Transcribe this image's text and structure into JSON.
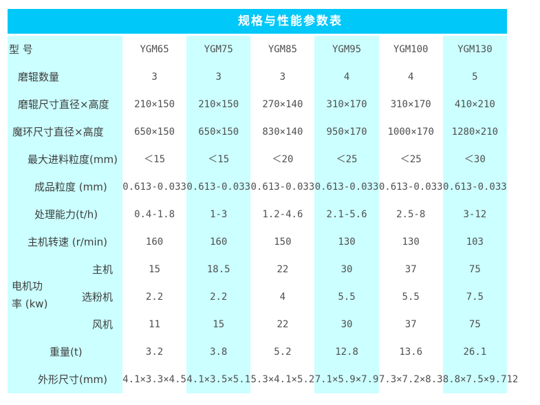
{
  "title": "规格与性能参数表",
  "colors": {
    "header_bg": "#00c8f8",
    "stripe": "#ccffff"
  },
  "table": {
    "model_row": {
      "label": "型 号",
      "values": [
        "YGM65",
        "YGM75",
        "YGM85",
        "YGM95",
        "YGM100",
        "YGM130"
      ]
    },
    "rows": [
      {
        "label": "磨辊数量",
        "values": [
          "3",
          "3",
          "3",
          "4",
          "4",
          "5"
        ]
      },
      {
        "label": "磨辊尺寸直径×高度",
        "values": [
          "210×150",
          "210×150",
          "270×140",
          "310×170",
          "310×170",
          "410×210"
        ]
      },
      {
        "label": "魔环尺寸直径×高度",
        "values": [
          "650×150",
          "650×150",
          "830×140",
          "950×170",
          "1000×170",
          "1280×210"
        ]
      },
      {
        "label": "最大进料粒度(mm)",
        "values": [
          "＜15",
          "＜15",
          "＜20",
          "＜25",
          "＜25",
          "＜30"
        ]
      },
      {
        "label": "成品粒度 (mm)",
        "values": [
          "0.613-0.033",
          "0.613-0.033",
          "0.613-0.033",
          "0.613-0.033",
          "0.613-0.033",
          "0.613-0.033"
        ]
      },
      {
        "label": "处理能力(t/h)",
        "values": [
          "0.4-1.8",
          "1-3",
          "1.2-4.6",
          "2.1-5.6",
          "2.5-8",
          "3-12"
        ]
      },
      {
        "label": "主机转速 (r/min)",
        "values": [
          "160",
          "160",
          "150",
          "130",
          "130",
          "103"
        ]
      },
      {
        "label": "主机",
        "values": [
          "15",
          "18.5",
          "22",
          "30",
          "37",
          "75"
        ]
      },
      {
        "label": "选粉机",
        "values": [
          "2.2",
          "2.2",
          "4",
          "5.5",
          "5.5",
          "7.5"
        ]
      },
      {
        "label": "风机",
        "values": [
          "11",
          "15",
          "22",
          "30",
          "37",
          "75"
        ]
      },
      {
        "label": "重量(t)",
        "values": [
          "3.2",
          "3.8",
          "5.2",
          "12.8",
          "13.6",
          "26.1"
        ]
      },
      {
        "label": "外形尺寸(mm)",
        "values": [
          "4.1×3.3×4.5",
          "4.1×3.5×5.1",
          "5.3×4.1×5.2",
          "7.1×5.9×7.9",
          "7.3×7.2×8.3",
          "8.8×7.5×9.712"
        ]
      }
    ],
    "motor_label_lines": [
      "电机功",
      "率 (kw)"
    ]
  }
}
